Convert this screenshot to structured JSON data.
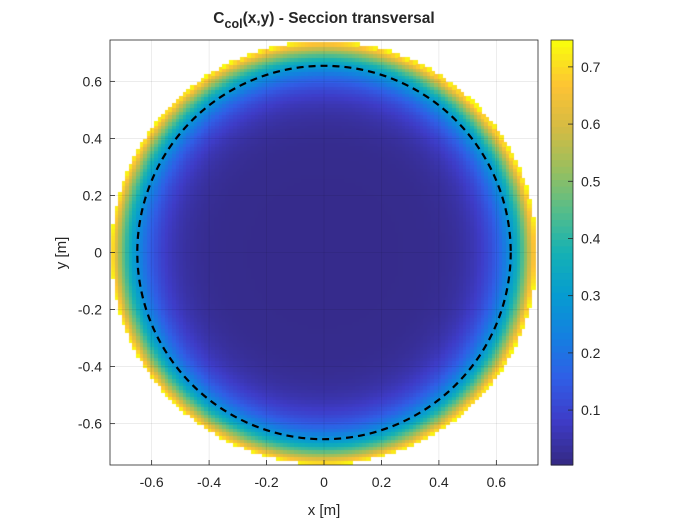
{
  "chart_data": {
    "type": "heatmap",
    "title_main": "C",
    "title_sub": "col",
    "title_rest": "(x,y) - Seccion transversal",
    "xlabel": "x [m]",
    "ylabel": "y [m]",
    "xlim": [
      -0.745,
      0.745
    ],
    "ylim": [
      -0.745,
      0.745
    ],
    "xticks": [
      -0.6,
      -0.4,
      -0.2,
      0,
      0.2,
      0.4,
      0.6
    ],
    "xtick_labels": [
      "-0.6",
      "-0.4",
      "-0.2",
      "0",
      "0.2",
      "0.4",
      "0.6"
    ],
    "yticks": [
      0.6,
      0.4,
      0.2,
      0,
      -0.2,
      -0.4,
      -0.6
    ],
    "ytick_labels": [
      "0.6",
      "0.4",
      "0.2",
      "0",
      "-0.2",
      "-0.4",
      "-0.6"
    ],
    "grid": true,
    "colormap": "parula",
    "clim": [
      0.004,
      0.747
    ],
    "colorbar_ticks": [
      0.1,
      0.2,
      0.3,
      0.4,
      0.5,
      0.6,
      0.7
    ],
    "colorbar_tick_labels": [
      "0.1",
      "0.2",
      "0.3",
      "0.4",
      "0.5",
      "0.6",
      "0.7"
    ],
    "domain_radius": 0.74,
    "cell_size": 0.0125,
    "field": {
      "center_value": 0.01,
      "edge_value": 0.747,
      "profile": "increasing toward edge, ~(r/R)^8"
    },
    "dashed_circle_radius": 0.65
  }
}
